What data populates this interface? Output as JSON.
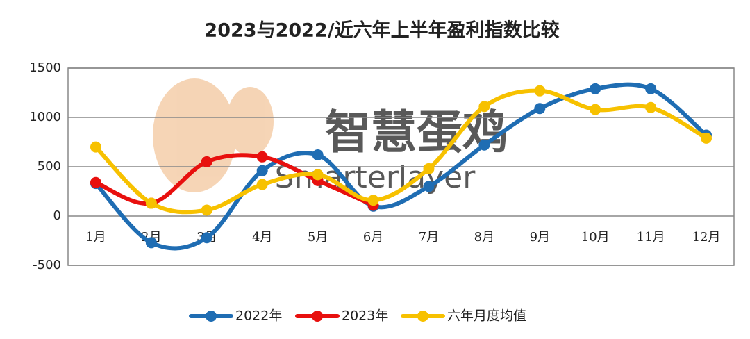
{
  "chart_data": {
    "type": "line",
    "title": "2023与2022/近六年上半年盈利指数比较",
    "watermark": "智慧蛋鸡",
    "watermark_sub": "Smarterlayer",
    "categories": [
      "1月",
      "2月",
      "3月",
      "4月",
      "5月",
      "6月",
      "7月",
      "8月",
      "9月",
      "10月",
      "11月",
      "12月"
    ],
    "series": [
      {
        "name": "2022年",
        "color": "#1f6db3",
        "values": [
          330,
          -270,
          -220,
          460,
          620,
          100,
          300,
          720,
          1090,
          1290,
          1290,
          820
        ]
      },
      {
        "name": "2023年",
        "color": "#e8100e",
        "values": [
          340,
          130,
          550,
          600,
          360,
          110,
          null,
          null,
          null,
          null,
          null,
          null
        ]
      },
      {
        "name": "六年月度均值",
        "color": "#f7c100",
        "values": [
          700,
          130,
          60,
          320,
          420,
          160,
          480,
          1110,
          1270,
          1080,
          1100,
          790
        ]
      }
    ],
    "ylim": [
      -500,
      1500
    ],
    "yticks": [
      -500,
      0,
      500,
      1000,
      1500
    ],
    "grid": true,
    "smooth": true,
    "legend": "bottom"
  }
}
